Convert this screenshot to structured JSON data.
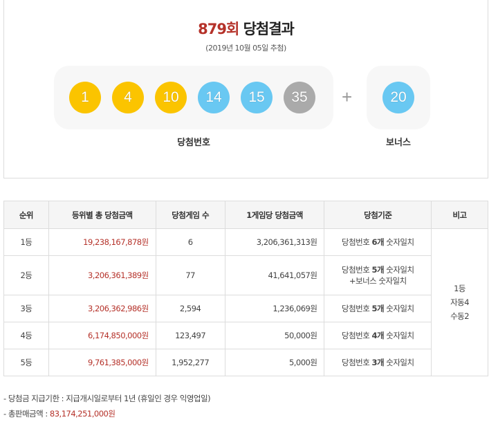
{
  "header": {
    "round": "879회",
    "title_suffix": " 당첨결과",
    "draw_date": "(2019년 10월 05일 추첨)"
  },
  "winning_numbers": [
    {
      "number": "1",
      "color": "#fbc400"
    },
    {
      "number": "4",
      "color": "#fbc400"
    },
    {
      "number": "10",
      "color": "#fbc400"
    },
    {
      "number": "14",
      "color": "#69c8f2"
    },
    {
      "number": "15",
      "color": "#69c8f2"
    },
    {
      "number": "35",
      "color": "#aaaaaa"
    }
  ],
  "plus_sign": "+",
  "bonus": {
    "number": "20",
    "color": "#69c8f2"
  },
  "labels": {
    "winning": "당첨번호",
    "bonus": "보너스"
  },
  "table": {
    "headers": [
      "순위",
      "등위별 총 당첨금액",
      "당첨게임 수",
      "1게임당 당첨금액",
      "당첨기준",
      "비고"
    ],
    "rows": [
      {
        "rank": "1등",
        "total": "19,238,167,878원",
        "games": "6",
        "per_game": "3,206,361,313원",
        "criteria_pre": "당첨번호 ",
        "criteria_hl": "6개",
        "criteria_post": " 숫자일치",
        "criteria_line2": ""
      },
      {
        "rank": "2등",
        "total": "3,206,361,389원",
        "games": "77",
        "per_game": "41,641,057원",
        "criteria_pre": "당첨번호 ",
        "criteria_hl": "5개",
        "criteria_post": " 숫자일치",
        "criteria_line2": "+보너스 숫자일치"
      },
      {
        "rank": "3등",
        "total": "3,206,362,986원",
        "games": "2,594",
        "per_game": "1,236,069원",
        "criteria_pre": "당첨번호 ",
        "criteria_hl": "5개",
        "criteria_post": " 숫자일치",
        "criteria_line2": ""
      },
      {
        "rank": "4등",
        "total": "6,174,850,000원",
        "games": "123,497",
        "per_game": "50,000원",
        "criteria_pre": "당첨번호 ",
        "criteria_hl": "4개",
        "criteria_post": " 숫자일치",
        "criteria_line2": ""
      },
      {
        "rank": "5등",
        "total": "9,761,385,000원",
        "games": "1,952,277",
        "per_game": "5,000원",
        "criteria_pre": "당첨번호 ",
        "criteria_hl": "3개",
        "criteria_post": " 숫자일치",
        "criteria_line2": ""
      }
    ],
    "remarks": [
      "1등",
      "자동4",
      "수동2"
    ]
  },
  "notes": {
    "deadline_label": "당첨금 지급기한 : ",
    "deadline_value": "지급개시일로부터 1년 (휴일인 경우 익영업일)",
    "total_sales_label": "총판매금액 : ",
    "total_sales_value": "83,174,251,000원"
  }
}
